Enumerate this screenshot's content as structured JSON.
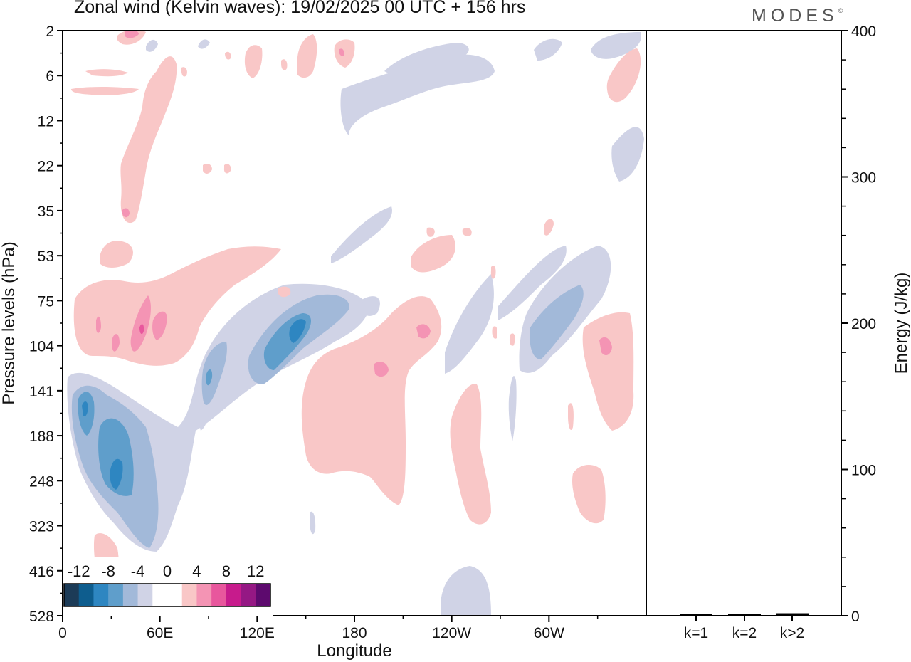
{
  "header": {
    "title": "Zonal wind (Kelvin waves):  19/02/2025  00 UTC  + 156 hrs",
    "brand": "MODES",
    "brand_mark": "©"
  },
  "chart_data": [
    {
      "type": "heatmap",
      "description_kind": "filled contours of zonal wind (m/s) by longitude and pressure level",
      "xlabel": "Longitude",
      "ylabel": "Pressure levels (hPa)",
      "x_tick_labels": [
        "0",
        "60E",
        "120E",
        "180",
        "120W",
        "60W"
      ],
      "x_tick_values_deg_east": [
        0,
        60,
        120,
        180,
        240,
        300
      ],
      "xlim_deg_east": [
        0,
        360
      ],
      "y_tick_labels": [
        "2",
        "6",
        "12",
        "22",
        "35",
        "53",
        "75",
        "104",
        "141",
        "188",
        "248",
        "323",
        "416",
        "528"
      ],
      "y_scale": "categorical pressure levels, top to bottom",
      "colorbar": {
        "labels": [
          "-12",
          "-8",
          "-4",
          "0",
          "4",
          "8",
          "12"
        ],
        "label_values": [
          -12,
          -8,
          -4,
          0,
          4,
          8,
          12
        ],
        "bin_colors": [
          "#1c3b57",
          "#0e5d8e",
          "#2e86c1",
          "#5f9ecb",
          "#a2b9d9",
          "#d0d3e6",
          "#ffffff",
          "#ffffff",
          "#f9c7c7",
          "#f494b4",
          "#e8579d",
          "#c71b8c",
          "#951884",
          "#5d0a6e"
        ],
        "placement": "bottom-left"
      },
      "colors": {
        "neg_weak": "#d0d3e6",
        "neg_mid": "#a2b9d9",
        "neg_strong": "#5f9ecb",
        "neg_vstrong": "#2e86c1",
        "pos_weak": "#f9c7c7",
        "pos_mid": "#f494b4",
        "pos_strong": "#e8579d"
      }
    },
    {
      "type": "bar",
      "categories": [
        "k=1",
        "k=2",
        "k>2"
      ],
      "values": [
        0.8,
        0.6,
        1.2
      ],
      "ylabel": "Energy (J/kg)",
      "ylim": [
        0,
        400
      ],
      "y_tick_labels": [
        "0",
        "100",
        "200",
        "300",
        "400"
      ],
      "y_tick_values": [
        0,
        100,
        200,
        300,
        400
      ],
      "bar_color": "#000000"
    }
  ]
}
